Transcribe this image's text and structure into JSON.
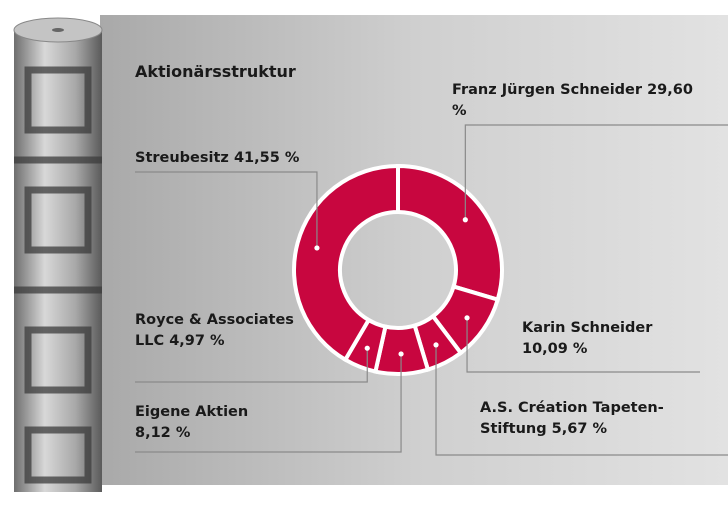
{
  "chart_data": {
    "type": "donut",
    "title": "Aktionärsstruktur",
    "categories": [
      "Franz Jürgen Schneider",
      "Karin Schneider",
      "A.S. Création Tapeten-Stiftung",
      "Eigene Aktien",
      "Royce & Associates LLC",
      "Streubesitz"
    ],
    "values": [
      29.6,
      10.09,
      5.67,
      8.12,
      4.97,
      41.55
    ],
    "value_labels": [
      "29,60 %",
      "10,09 %",
      "5,67 %",
      "8,12 %",
      "4,97 %",
      "41,55 %"
    ],
    "color": "#c8063f"
  }
}
